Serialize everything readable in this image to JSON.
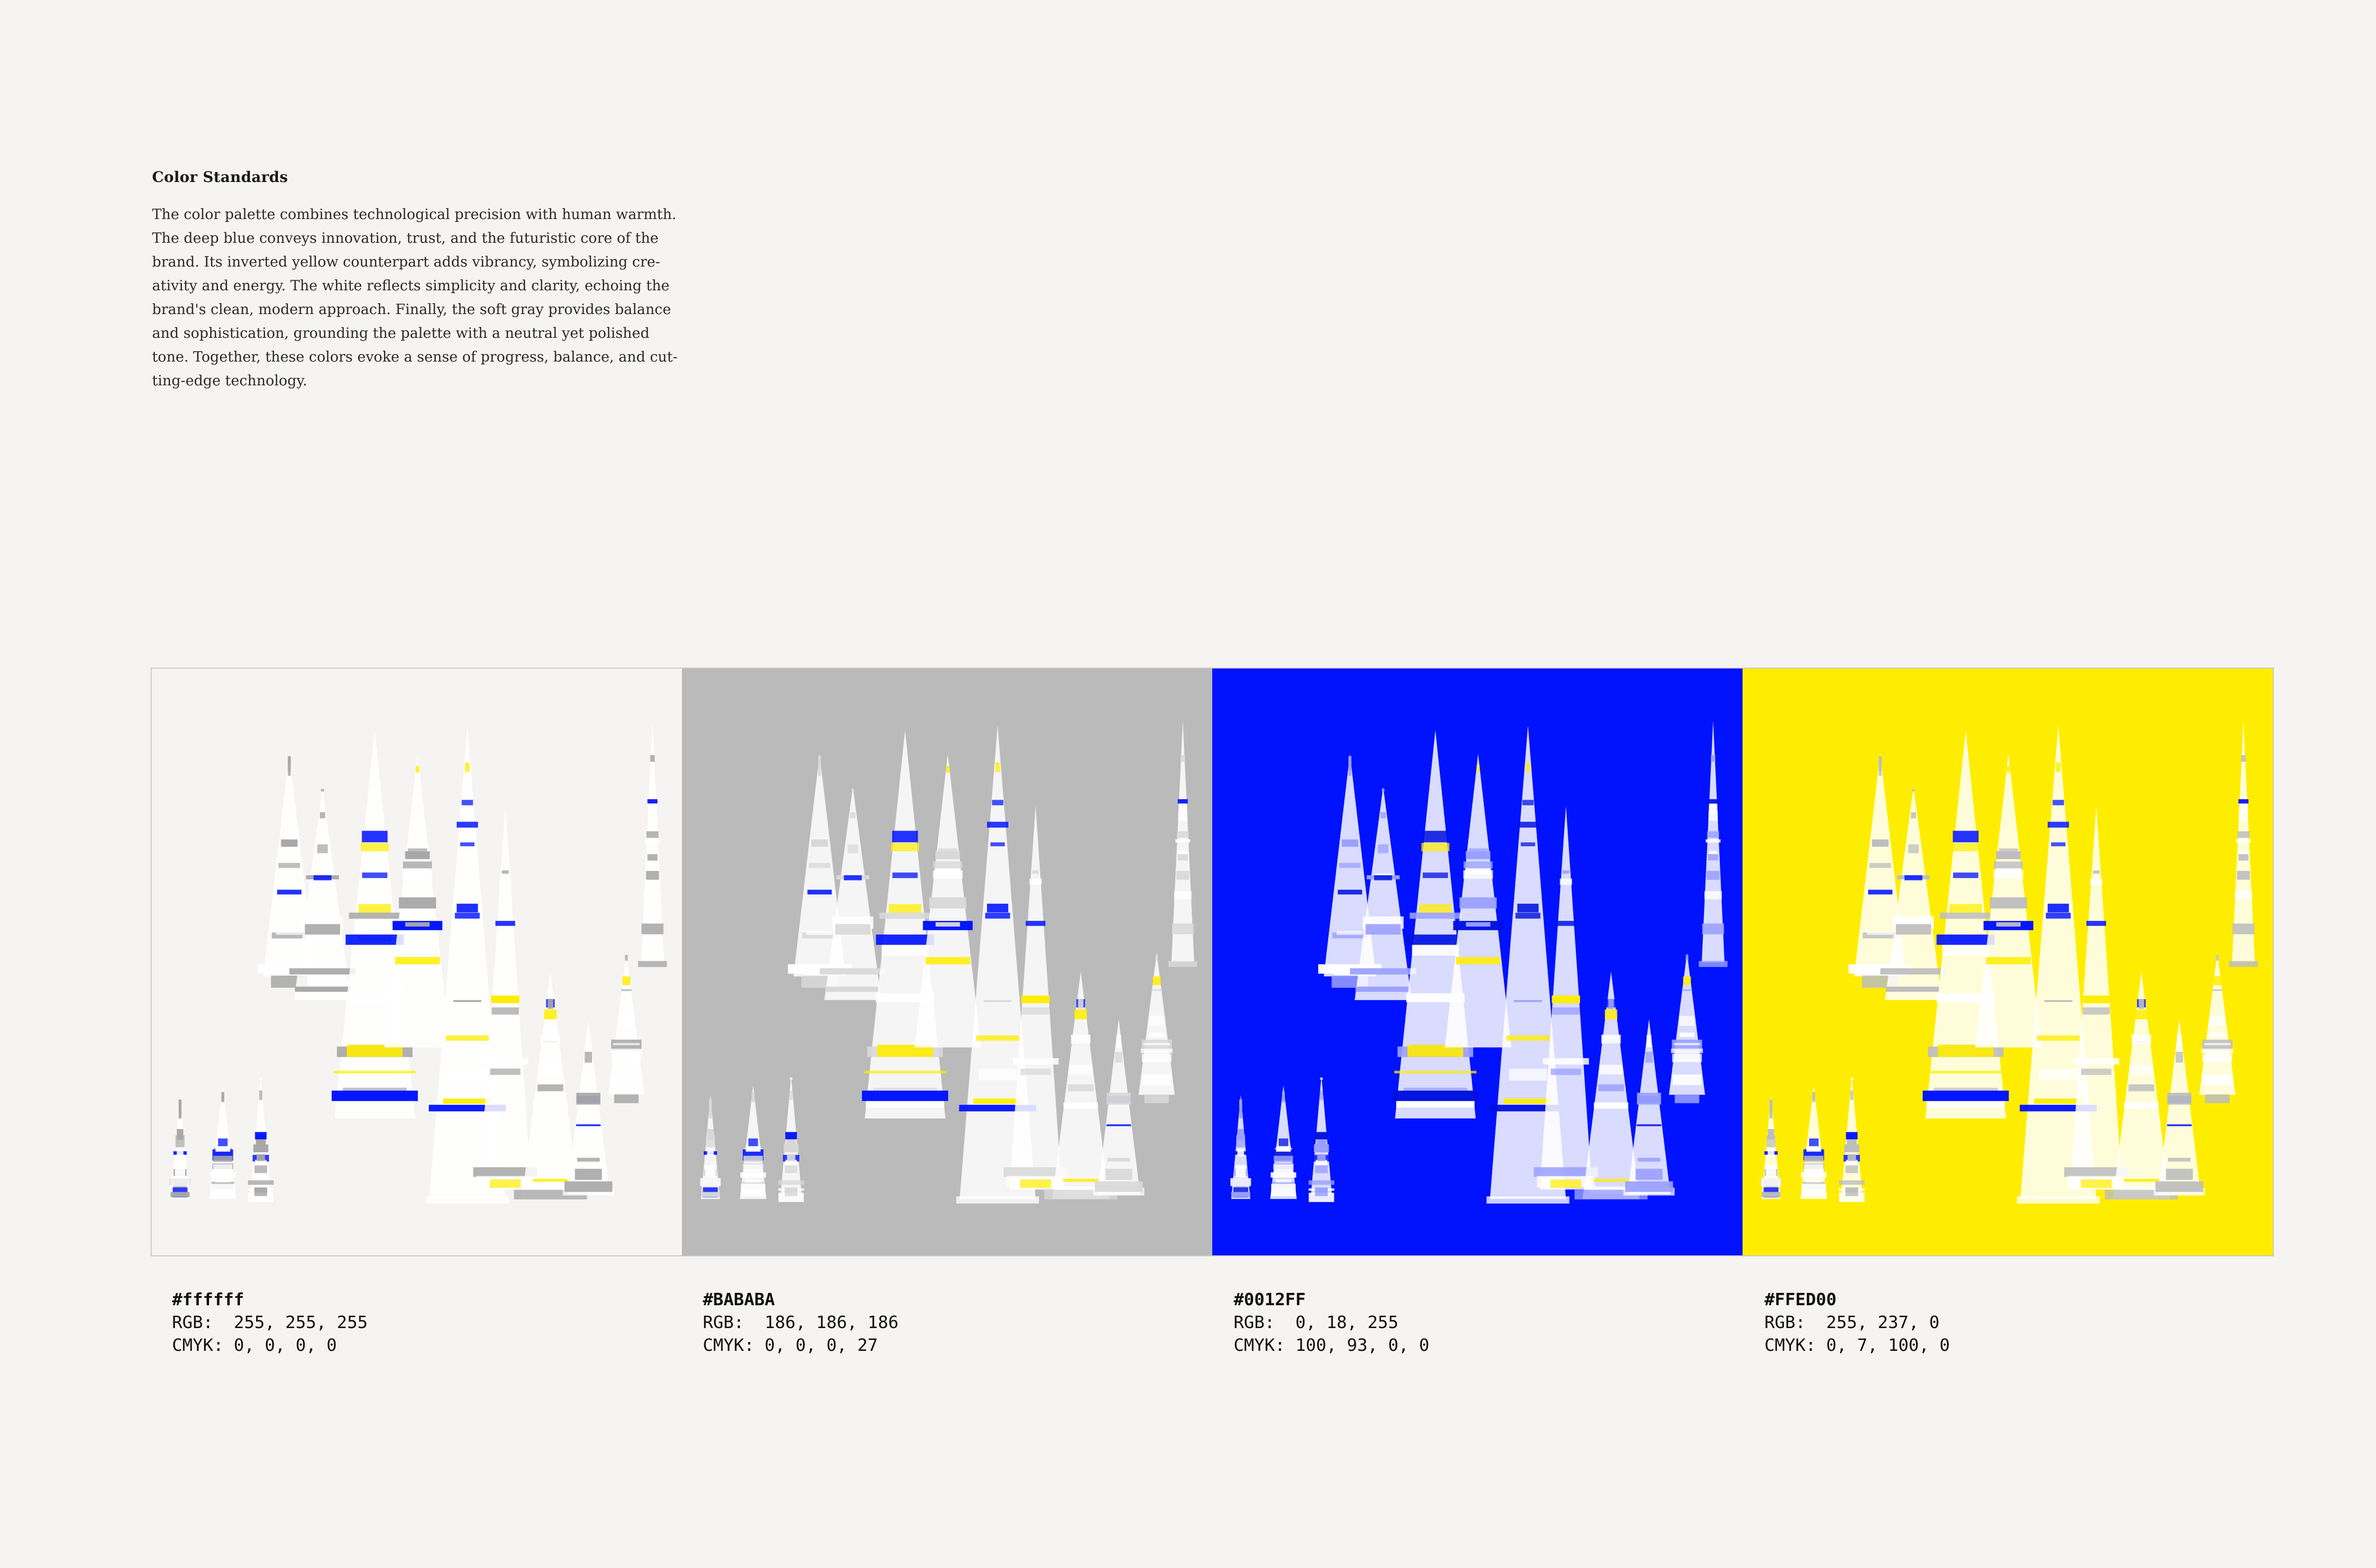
{
  "title": "Color Standards",
  "body_lines": [
    "The color palette combines technological precision with human warmth.",
    "The deep blue conveys innovation, trust, and the futuristic core of the",
    "brand. Its inverted yellow counterpart adds vibrancy, symbolizing cre-",
    "ativity and energy. The white reflects simplicity and clarity, echoing the",
    "brand's clean, modern approach. Finally, the soft gray provides balance",
    "and sophistication, grounding the palette with a neutral yet polished",
    "tone. Together, these colors evoke a sense of progress, balance, and cut-",
    "ting-edge technology."
  ],
  "swatches": [
    {
      "hex": "#ffffff",
      "rgb_label": "RGB:  255, 255, 255",
      "cmyk_label": "CMYK: 0, 0, 0, 0",
      "background": "#f5f4f2",
      "art_colors": {
        "light": "#ffffff",
        "mid": "#a8a8a8",
        "blue": "#0012ff",
        "yellow": "#ffed00"
      }
    },
    {
      "hex": "#BABABA",
      "rgb_label": "RGB:  186, 186, 186",
      "cmyk_label": "CMYK: 0, 0, 0, 27",
      "background": "#bababa",
      "art_colors": {
        "light": "#ffffff",
        "mid": "#d8d8d8",
        "blue": "#0012ff",
        "yellow": "#ffed00"
      }
    },
    {
      "hex": "#0012FF",
      "rgb_label": "RGB:  0, 18, 255",
      "cmyk_label": "CMYK: 100, 93, 0, 0",
      "background": "#0012ff",
      "art_colors": {
        "light": "#ffffff",
        "mid": "#9aa0ff",
        "blue": "#0010e0",
        "yellow": "#ffed00"
      }
    },
    {
      "hex": "#FFED00",
      "rgb_label": "RGB:  255, 237, 0",
      "cmyk_label": "CMYK: 0, 7, 100, 0",
      "background": "#ffed00",
      "art_colors": {
        "light": "#ffffff",
        "mid": "#bdbdbd",
        "blue": "#0012ff",
        "yellow": "#ffed00"
      }
    }
  ]
}
